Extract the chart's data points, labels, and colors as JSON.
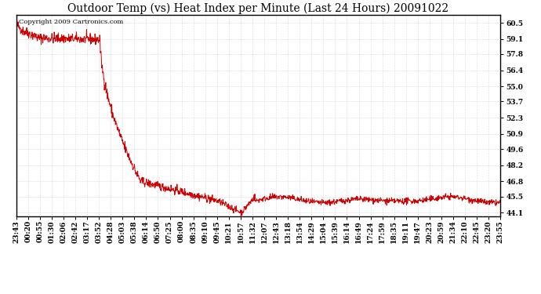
{
  "title": "Outdoor Temp (vs) Heat Index per Minute (Last 24 Hours) 20091022",
  "copyright_text": "Copyright 2009 Cartronics.com",
  "line_color": "#cc0000",
  "background_color": "#ffffff",
  "grid_color": "#bbbbbb",
  "border_color": "#000000",
  "yticks": [
    44.1,
    45.5,
    46.8,
    48.2,
    49.6,
    50.9,
    52.3,
    53.7,
    55.0,
    56.4,
    57.8,
    59.1,
    60.5
  ],
  "ylim": [
    43.8,
    61.2
  ],
  "xtick_labels": [
    "23:43",
    "00:20",
    "00:55",
    "01:30",
    "02:06",
    "02:42",
    "03:17",
    "03:52",
    "04:28",
    "05:03",
    "05:38",
    "06:14",
    "06:50",
    "07:25",
    "08:00",
    "08:35",
    "09:10",
    "09:45",
    "10:21",
    "10:57",
    "11:32",
    "12:07",
    "12:43",
    "13:18",
    "13:54",
    "14:29",
    "15:04",
    "15:39",
    "16:14",
    "16:49",
    "17:24",
    "17:59",
    "18:35",
    "19:11",
    "19:47",
    "20:23",
    "20:59",
    "21:34",
    "22:10",
    "22:45",
    "23:20",
    "23:55"
  ],
  "title_fontsize": 10,
  "tick_fontsize": 6.5,
  "copyright_fontsize": 6
}
